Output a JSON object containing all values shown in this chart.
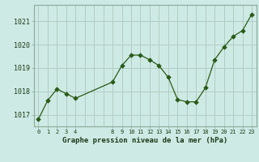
{
  "x": [
    0,
    1,
    2,
    3,
    4,
    8,
    9,
    10,
    11,
    12,
    13,
    14,
    15,
    16,
    17,
    18,
    19,
    20,
    21,
    22,
    23
  ],
  "y": [
    1016.8,
    1017.6,
    1018.1,
    1017.9,
    1017.7,
    1018.4,
    1019.1,
    1019.55,
    1019.55,
    1019.35,
    1019.1,
    1018.6,
    1017.65,
    1017.55,
    1017.55,
    1018.15,
    1019.35,
    1019.9,
    1020.35,
    1020.6,
    1021.3
  ],
  "yticks": [
    1017,
    1018,
    1019,
    1020,
    1021
  ],
  "xlabel": "Graphe pression niveau de la mer (hPa)",
  "line_color": "#2a5a18",
  "marker_color": "#2a5a18",
  "bg_color": "#ceeae4",
  "grid_color": "#adc8c0",
  "border_color": "#8aaa9a",
  "text_color": "#1a3a1a",
  "ymin": 1016.5,
  "ymax": 1021.7,
  "xmin": -0.5,
  "xmax": 23.5
}
